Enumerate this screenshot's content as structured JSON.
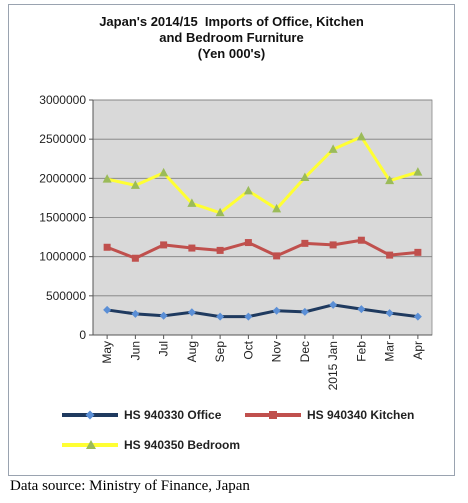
{
  "chart_data": {
    "type": "line",
    "title_lines": [
      "Japan's 2014/15  Imports of Office, Kitchen",
      "and Bedroom Furniture",
      "(Yen 000's)"
    ],
    "categories": [
      "May",
      "Jun",
      "Jul",
      "Aug",
      "Sep",
      "Oct",
      "Nov",
      "Dec",
      "2015 Jan",
      "Feb",
      "Mar",
      "Apr"
    ],
    "ylim": [
      0,
      3000000
    ],
    "yticks": [
      0,
      500000,
      1000000,
      1500000,
      2000000,
      2500000,
      3000000
    ],
    "ytick_labels": [
      "0",
      "500000",
      "1000000",
      "1500000",
      "2000000",
      "2500000",
      "3000000"
    ],
    "grid": true,
    "plot_background": "#d9d9d9",
    "legend_position": "bottom",
    "series": [
      {
        "name": "HS 940330 Office",
        "color": "#1f3a5f",
        "marker": "diamond",
        "marker_color": "#5b8fd6",
        "values": [
          320000,
          270000,
          245000,
          290000,
          235000,
          235000,
          310000,
          295000,
          385000,
          330000,
          280000,
          235000
        ]
      },
      {
        "name": "HS 940340 Kitchen",
        "color": "#c0504d",
        "marker": "square",
        "marker_color": "#c0504d",
        "values": [
          1120000,
          980000,
          1150000,
          1110000,
          1080000,
          1180000,
          1010000,
          1170000,
          1150000,
          1210000,
          1020000,
          1055000
        ]
      },
      {
        "name": "HS 940350 Bedroom",
        "color": "#ffff33",
        "marker": "triangle",
        "marker_color": "#9bbb59",
        "values": [
          1990000,
          1910000,
          2070000,
          1680000,
          1560000,
          1840000,
          1610000,
          2010000,
          2370000,
          2530000,
          1970000,
          2080000
        ]
      }
    ]
  },
  "source_text": "Data source: Ministry of Finance, Japan"
}
